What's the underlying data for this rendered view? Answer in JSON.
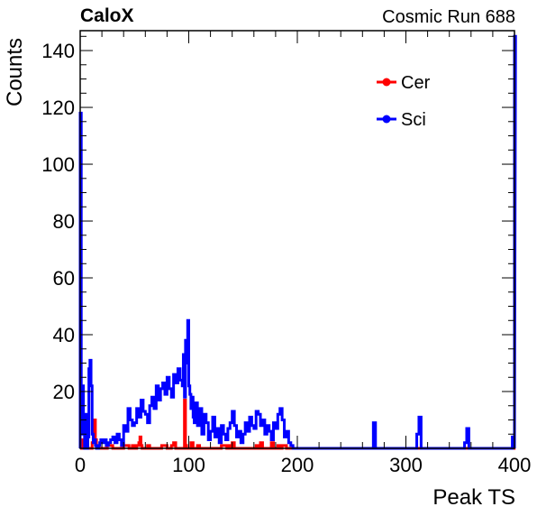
{
  "header": {
    "experiment": "CaloX",
    "run_label": "Cosmic Run 688"
  },
  "chart_data": {
    "type": "line",
    "xlabel": "Peak TS",
    "ylabel": "Counts",
    "xlim": [
      0,
      400
    ],
    "ylim": [
      0,
      147
    ],
    "x_ticks": [
      0,
      100,
      200,
      300,
      400
    ],
    "y_ticks": [
      20,
      40,
      60,
      80,
      100,
      120,
      140
    ],
    "legend_position": "top-right",
    "series": [
      {
        "name": "Cer",
        "color": "#ff0000",
        "x": [
          0,
          1,
          2,
          3,
          4,
          5,
          6,
          7,
          8,
          9,
          10,
          11,
          12,
          13,
          14,
          15,
          16,
          17,
          18,
          19,
          20,
          25,
          30,
          35,
          40,
          45,
          48,
          50,
          52,
          54,
          55,
          56,
          57,
          58,
          60,
          62,
          64,
          66,
          70,
          75,
          80,
          82,
          84,
          86,
          88,
          90,
          92,
          94,
          96,
          97,
          98,
          99,
          100,
          102,
          104,
          106,
          108,
          110,
          115,
          120,
          125,
          130,
          135,
          137,
          139,
          140,
          142,
          145,
          150,
          155,
          160,
          162,
          164,
          166,
          168,
          170,
          172,
          174,
          176,
          178,
          180,
          182,
          184,
          186,
          190,
          200,
          250,
          300,
          350,
          400
        ],
        "y": [
          0,
          3,
          0,
          0,
          0,
          1,
          3,
          0,
          0,
          0,
          0,
          2,
          4,
          10,
          3,
          0,
          0,
          0,
          0,
          0,
          0,
          1,
          0,
          0,
          1,
          0,
          1,
          0,
          1,
          2,
          4,
          1,
          0,
          0,
          0,
          1,
          0,
          0,
          0,
          1,
          0,
          0,
          1,
          2,
          0,
          0,
          0,
          0,
          17,
          1,
          0,
          0,
          0,
          2,
          0,
          0,
          1,
          0,
          0,
          0,
          0,
          1,
          0,
          1,
          0,
          2,
          0,
          0,
          0,
          0,
          0,
          1,
          0,
          2,
          0,
          0,
          0,
          0,
          2,
          0,
          0,
          1,
          0,
          1,
          0,
          0,
          0,
          0,
          0,
          0
        ]
      },
      {
        "name": "Sci",
        "color": "#0000ff",
        "x": [
          0,
          1,
          2,
          3,
          4,
          5,
          6,
          7,
          8,
          9,
          10,
          11,
          12,
          13,
          14,
          15,
          16,
          17,
          18,
          19,
          20,
          22,
          24,
          26,
          28,
          30,
          32,
          34,
          36,
          38,
          40,
          42,
          44,
          46,
          48,
          50,
          52,
          54,
          56,
          58,
          60,
          62,
          64,
          66,
          68,
          70,
          72,
          74,
          76,
          78,
          80,
          82,
          84,
          86,
          88,
          90,
          92,
          94,
          95,
          96,
          97,
          98,
          99,
          100,
          101,
          102,
          103,
          104,
          105,
          106,
          108,
          110,
          112,
          114,
          116,
          118,
          120,
          122,
          124,
          126,
          128,
          130,
          132,
          134,
          136,
          138,
          140,
          142,
          144,
          146,
          148,
          150,
          152,
          154,
          156,
          158,
          160,
          162,
          164,
          166,
          168,
          170,
          172,
          174,
          176,
          178,
          180,
          182,
          184,
          186,
          188,
          190,
          192,
          194,
          196,
          200,
          220,
          240,
          260,
          266,
          268,
          270,
          272,
          280,
          300,
          308,
          310,
          312,
          314,
          320,
          340,
          350,
          354,
          356,
          358,
          360,
          380,
          396,
          398,
          400
        ],
        "y": [
          118,
          5,
          22,
          10,
          0,
          12,
          0,
          4,
          28,
          31,
          22,
          5,
          2,
          3,
          1,
          0,
          0,
          1,
          2,
          3,
          2,
          3,
          1,
          2,
          3,
          4,
          2,
          5,
          3,
          1,
          8,
          6,
          14,
          10,
          8,
          9,
          14,
          11,
          17,
          13,
          12,
          9,
          15,
          18,
          14,
          22,
          17,
          21,
          23,
          19,
          25,
          21,
          18,
          26,
          23,
          28,
          24,
          22,
          33,
          18,
          38,
          30,
          45,
          22,
          19,
          14,
          18,
          11,
          9,
          16,
          8,
          14,
          5,
          12,
          9,
          3,
          6,
          11,
          4,
          7,
          2,
          8,
          5,
          3,
          7,
          9,
          13,
          8,
          4,
          6,
          2,
          5,
          9,
          6,
          11,
          8,
          7,
          13,
          12,
          8,
          10,
          5,
          8,
          6,
          3,
          9,
          7,
          12,
          14,
          10,
          4,
          6,
          2,
          1,
          0,
          0,
          0,
          0,
          0,
          0,
          0,
          9,
          0,
          0,
          0,
          0,
          5,
          11,
          0,
          0,
          0,
          0,
          2,
          7,
          0,
          0,
          0,
          0,
          4,
          145
        ]
      }
    ]
  }
}
